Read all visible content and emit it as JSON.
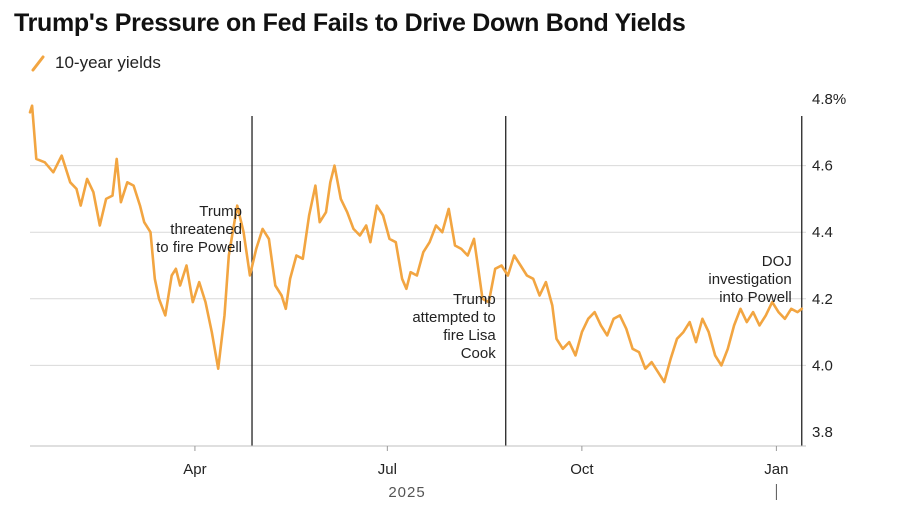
{
  "title": "Trump's Pressure on Fed Fails to Drive Down Bond Yields",
  "legend": {
    "label": "10-year yields"
  },
  "colors": {
    "series": "#f2a541",
    "grid": "#d9d9d9",
    "annotation_line": "#111111",
    "axis": "#555555"
  },
  "chart_data": {
    "type": "line",
    "title": "Trump's Pressure on Fed Fails to Drive Down Bond Yields",
    "xlabel": "",
    "ylabel": "",
    "ylim": [
      3.8,
      4.8
    ],
    "yticks": [
      "4.8%",
      "4.6",
      "4.4",
      "4.2",
      "4.0",
      "3.8"
    ],
    "ytick_values": [
      4.8,
      4.6,
      4.4,
      4.2,
      4.0,
      3.8
    ],
    "xlim": [
      "2025-01-13",
      "2026-01-15"
    ],
    "xticks": [
      {
        "date": "2025-04-01",
        "label": "Apr"
      },
      {
        "date": "2025-07-01",
        "label": "Jul"
      },
      {
        "date": "2025-10-01",
        "label": "Oct"
      },
      {
        "date": "2026-01-01",
        "label": "Jan"
      }
    ],
    "year_label": "2025",
    "grid": true,
    "legend_position": "top-left",
    "series": [
      {
        "name": "10-year yields",
        "points": [
          [
            "2025-01-13",
            4.76
          ],
          [
            "2025-01-14",
            4.78
          ],
          [
            "2025-01-16",
            4.62
          ],
          [
            "2025-01-20",
            4.61
          ],
          [
            "2025-01-24",
            4.58
          ],
          [
            "2025-01-28",
            4.63
          ],
          [
            "2025-02-01",
            4.55
          ],
          [
            "2025-02-04",
            4.53
          ],
          [
            "2025-02-06",
            4.48
          ],
          [
            "2025-02-09",
            4.56
          ],
          [
            "2025-02-12",
            4.52
          ],
          [
            "2025-02-15",
            4.42
          ],
          [
            "2025-02-18",
            4.5
          ],
          [
            "2025-02-21",
            4.51
          ],
          [
            "2025-02-23",
            4.62
          ],
          [
            "2025-02-25",
            4.49
          ],
          [
            "2025-02-28",
            4.55
          ],
          [
            "2025-03-03",
            4.54
          ],
          [
            "2025-03-06",
            4.48
          ],
          [
            "2025-03-08",
            4.43
          ],
          [
            "2025-03-11",
            4.4
          ],
          [
            "2025-03-13",
            4.26
          ],
          [
            "2025-03-15",
            4.2
          ],
          [
            "2025-03-18",
            4.15
          ],
          [
            "2025-03-21",
            4.27
          ],
          [
            "2025-03-23",
            4.29
          ],
          [
            "2025-03-25",
            4.24
          ],
          [
            "2025-03-28",
            4.3
          ],
          [
            "2025-03-31",
            4.19
          ],
          [
            "2025-04-03",
            4.25
          ],
          [
            "2025-04-06",
            4.19
          ],
          [
            "2025-04-09",
            4.1
          ],
          [
            "2025-04-12",
            3.99
          ],
          [
            "2025-04-15",
            4.15
          ],
          [
            "2025-04-17",
            4.33
          ],
          [
            "2025-04-21",
            4.48
          ],
          [
            "2025-04-24",
            4.4
          ],
          [
            "2025-04-27",
            4.27
          ],
          [
            "2025-04-30",
            4.35
          ],
          [
            "2025-05-03",
            4.41
          ],
          [
            "2025-05-06",
            4.38
          ],
          [
            "2025-05-09",
            4.24
          ],
          [
            "2025-05-12",
            4.21
          ],
          [
            "2025-05-14",
            4.17
          ],
          [
            "2025-05-16",
            4.26
          ],
          [
            "2025-05-19",
            4.33
          ],
          [
            "2025-05-22",
            4.32
          ],
          [
            "2025-05-25",
            4.45
          ],
          [
            "2025-05-28",
            4.54
          ],
          [
            "2025-05-30",
            4.43
          ],
          [
            "2025-06-02",
            4.46
          ],
          [
            "2025-06-04",
            4.55
          ],
          [
            "2025-06-06",
            4.6
          ],
          [
            "2025-06-09",
            4.5
          ],
          [
            "2025-06-12",
            4.46
          ],
          [
            "2025-06-15",
            4.41
          ],
          [
            "2025-06-18",
            4.39
          ],
          [
            "2025-06-21",
            4.42
          ],
          [
            "2025-06-23",
            4.37
          ],
          [
            "2025-06-26",
            4.48
          ],
          [
            "2025-06-29",
            4.45
          ],
          [
            "2025-07-02",
            4.38
          ],
          [
            "2025-07-05",
            4.37
          ],
          [
            "2025-07-08",
            4.26
          ],
          [
            "2025-07-10",
            4.23
          ],
          [
            "2025-07-12",
            4.28
          ],
          [
            "2025-07-15",
            4.27
          ],
          [
            "2025-07-18",
            4.34
          ],
          [
            "2025-07-21",
            4.37
          ],
          [
            "2025-07-24",
            4.42
          ],
          [
            "2025-07-27",
            4.4
          ],
          [
            "2025-07-30",
            4.47
          ],
          [
            "2025-08-02",
            4.36
          ],
          [
            "2025-08-05",
            4.35
          ],
          [
            "2025-08-08",
            4.33
          ],
          [
            "2025-08-11",
            4.38
          ],
          [
            "2025-08-13",
            4.29
          ],
          [
            "2025-08-15",
            4.2
          ],
          [
            "2025-08-18",
            4.19
          ],
          [
            "2025-08-21",
            4.29
          ],
          [
            "2025-08-24",
            4.3
          ],
          [
            "2025-08-27",
            4.27
          ],
          [
            "2025-08-30",
            4.33
          ],
          [
            "2025-09-02",
            4.3
          ],
          [
            "2025-09-05",
            4.27
          ],
          [
            "2025-09-08",
            4.26
          ],
          [
            "2025-09-11",
            4.21
          ],
          [
            "2025-09-14",
            4.25
          ],
          [
            "2025-09-17",
            4.18
          ],
          [
            "2025-09-19",
            4.08
          ],
          [
            "2025-09-22",
            4.05
          ],
          [
            "2025-09-25",
            4.07
          ],
          [
            "2025-09-28",
            4.03
          ],
          [
            "2025-10-01",
            4.1
          ],
          [
            "2025-10-04",
            4.14
          ],
          [
            "2025-10-07",
            4.16
          ],
          [
            "2025-10-10",
            4.12
          ],
          [
            "2025-10-13",
            4.09
          ],
          [
            "2025-10-16",
            4.14
          ],
          [
            "2025-10-19",
            4.15
          ],
          [
            "2025-10-22",
            4.11
          ],
          [
            "2025-10-25",
            4.05
          ],
          [
            "2025-10-28",
            4.04
          ],
          [
            "2025-10-31",
            3.99
          ],
          [
            "2025-11-03",
            4.01
          ],
          [
            "2025-11-06",
            3.98
          ],
          [
            "2025-11-09",
            3.95
          ],
          [
            "2025-11-12",
            4.02
          ],
          [
            "2025-11-15",
            4.08
          ],
          [
            "2025-11-18",
            4.1
          ],
          [
            "2025-11-21",
            4.13
          ],
          [
            "2025-11-24",
            4.07
          ],
          [
            "2025-11-27",
            4.14
          ],
          [
            "2025-11-30",
            4.1
          ],
          [
            "2025-12-03",
            4.03
          ],
          [
            "2025-12-06",
            4.0
          ],
          [
            "2025-12-09",
            4.05
          ],
          [
            "2025-12-12",
            4.12
          ],
          [
            "2025-12-15",
            4.17
          ],
          [
            "2025-12-18",
            4.13
          ],
          [
            "2025-12-21",
            4.16
          ],
          [
            "2025-12-24",
            4.12
          ],
          [
            "2025-12-27",
            4.15
          ],
          [
            "2025-12-30",
            4.19
          ],
          [
            "2026-01-02",
            4.16
          ],
          [
            "2026-01-05",
            4.14
          ],
          [
            "2026-01-08",
            4.17
          ],
          [
            "2026-01-11",
            4.16
          ],
          [
            "2026-01-13",
            4.17
          ]
        ]
      }
    ],
    "annotations": [
      {
        "date": "2025-04-28",
        "lines": [
          "Trump",
          "threatened",
          "to fire Powell"
        ],
        "align": "right"
      },
      {
        "date": "2025-08-26",
        "lines": [
          "Trump",
          "attempted to",
          "fire Lisa",
          "Cook"
        ],
        "align": "right"
      },
      {
        "date": "2026-01-13",
        "lines": [
          "DOJ",
          "investigation",
          "into Powell"
        ],
        "align": "right"
      }
    ]
  }
}
